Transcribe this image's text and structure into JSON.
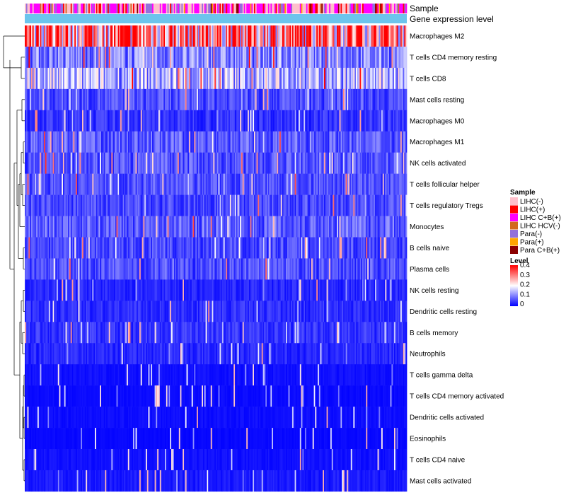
{
  "chart_data": {
    "type": "heatmap",
    "annotation_labels": {
      "sample": "Sample",
      "gene_expression": "Gene expression level"
    },
    "gene_expression_color": "#6CC4EC",
    "rows": [
      {
        "name": "Macrophages M2",
        "mean": 0.3
      },
      {
        "name": "T cells CD4 memory resting",
        "mean": 0.1
      },
      {
        "name": "T cells CD8",
        "mean": 0.14
      },
      {
        "name": "Mast cells resting",
        "mean": 0.06
      },
      {
        "name": "Macrophages M0",
        "mean": 0.04
      },
      {
        "name": "Macrophages M1",
        "mean": 0.07
      },
      {
        "name": "NK cells activated",
        "mean": 0.065
      },
      {
        "name": "T cells follicular helper",
        "mean": 0.06
      },
      {
        "name": "T cells regulatory  Tregs",
        "mean": 0.055
      },
      {
        "name": "Monocytes",
        "mean": 0.075
      },
      {
        "name": "B cells naive",
        "mean": 0.055
      },
      {
        "name": "Plasma cells",
        "mean": 0.06
      },
      {
        "name": "NK cells resting",
        "mean": 0.03
      },
      {
        "name": "Dendritic cells resting",
        "mean": 0.035
      },
      {
        "name": "B cells memory",
        "mean": 0.04
      },
      {
        "name": "Neutrophils",
        "mean": 0.03
      },
      {
        "name": "T cells gamma delta",
        "mean": 0.012
      },
      {
        "name": "T cells CD4 memory activated",
        "mean": 0.008
      },
      {
        "name": "Dendritic cells activated",
        "mean": 0.01
      },
      {
        "name": "Eosinophils",
        "mean": 0.006
      },
      {
        "name": "T cells CD4 naive",
        "mean": 0.012
      },
      {
        "name": "Mast cells activated",
        "mean": 0.02
      }
    ],
    "legend_sample": {
      "title": "Sample",
      "items": [
        {
          "label": "LIHC(-)",
          "color": "#FFC0CB"
        },
        {
          "label": "LIHC(+)",
          "color": "#FF0000"
        },
        {
          "label": "LIHC C+B(+)",
          "color": "#FF00FF"
        },
        {
          "label": "LIHC HCV(-)",
          "color": "#D2691E"
        },
        {
          "label": "Para(-)",
          "color": "#9370DB"
        },
        {
          "label": "Para(+)",
          "color": "#FFA500"
        },
        {
          "label": "Para C+B(+)",
          "color": "#8B0000"
        }
      ]
    },
    "legend_level": {
      "title": "Level",
      "ticks": [
        "0.4",
        "0.3",
        "0.2",
        "0.1",
        "0"
      ],
      "range": [
        0,
        0.4
      ],
      "colors": [
        "#0000FF",
        "#FFFFFF",
        "#FF0000"
      ]
    }
  }
}
